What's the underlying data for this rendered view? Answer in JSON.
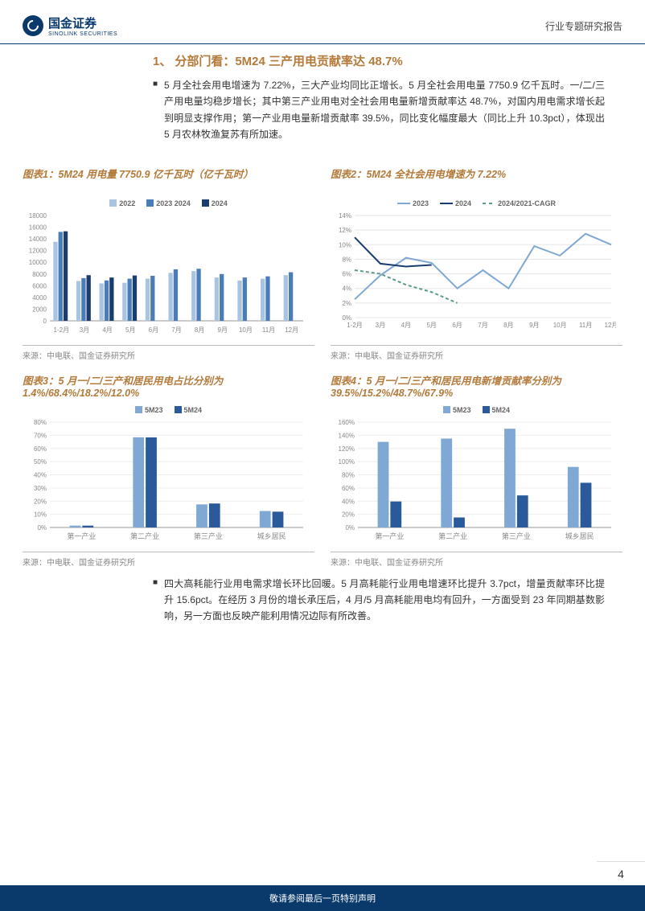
{
  "header": {
    "company_zh": "国金证券",
    "company_en": "SINOLINK SECURITIES",
    "report_type": "行业专题研究报告"
  },
  "section": {
    "number": "1、",
    "title": "分部门看：5M24 三产用电贡献率达 48.7%"
  },
  "para1": "5 月全社会用电增速为 7.22%，三大产业均同比正增长。5 月全社会用电量 7750.9 亿千瓦时。一/二/三产用电量均稳步增长；其中第三产业用电对全社会用电量新增贡献率达 48.7%，对国内用电需求增长起到明显支撑作用；第一产业用电量新增贡献率 39.5%，同比变化幅度最大（同比上升 10.3pct），体现出 5 月农林牧渔复苏有所加速。",
  "para2": "四大高耗能行业用电需求增长环比回暖。5 月高耗能行业用电增速环比提升 3.7pct，增量贡献率环比提升 15.6pct。在经历 3 月份的增长承压后，4 月/5 月高耗能用电均有回升，一方面受到 23 年同期基数影响，另一方面也反映产能利用情况边际有所改善。",
  "source_text": "来源：中电联、国金证券研究所",
  "footer": {
    "disclaimer": "敬请参阅最后一页特别声明",
    "page": "4"
  },
  "chart1": {
    "title": "图表1：5M24 用电量 7750.9 亿千瓦时（亿千瓦时）",
    "type": "bar",
    "legend": [
      "2022",
      "2023 2024",
      "2024"
    ],
    "colors": [
      "#a8c4e0",
      "#4a7cb8",
      "#1a3c6e"
    ],
    "categories": [
      "1-2月",
      "3月",
      "4月",
      "5月",
      "6月",
      "7月",
      "8月",
      "9月",
      "10月",
      "11月",
      "12月"
    ],
    "ylim": [
      0,
      18000
    ],
    "ytick_step": 2000,
    "values_2022": [
      13500,
      6800,
      6400,
      6500,
      7200,
      8200,
      8500,
      7400,
      6900,
      7200,
      7800
    ],
    "values_2023": [
      15200,
      7300,
      6900,
      7200,
      7700,
      8800,
      8900,
      8000,
      7400,
      7600,
      8300
    ],
    "values_2024": [
      15300,
      7800,
      7400,
      7750,
      0,
      0,
      0,
      0,
      0,
      0,
      0
    ],
    "background_color": "#ffffff",
    "axis_color": "#999999",
    "label_fontsize": 9
  },
  "chart2": {
    "title": "图表2：5M24 全社会用电增速为 7.22%",
    "type": "line",
    "legend": [
      "2023",
      "2024",
      "2024/2021-CAGR"
    ],
    "colors": [
      "#7fa8d4",
      "#1a3c6e",
      "#5a9a8a"
    ],
    "line_styles": [
      "solid",
      "solid",
      "dashed"
    ],
    "categories": [
      "1-2月",
      "3月",
      "4月",
      "5月",
      "6月",
      "7月",
      "8月",
      "9月",
      "10月",
      "11月",
      "12月"
    ],
    "ylim": [
      0,
      14
    ],
    "ytick_step": 2,
    "unit": "%",
    "values_2023": [
      2.5,
      5.8,
      8.2,
      7.5,
      4.0,
      6.5,
      4.0,
      9.8,
      8.5,
      11.5,
      10.0
    ],
    "values_2024": [
      11.0,
      7.4,
      7.0,
      7.22
    ],
    "values_cagr": [
      6.5,
      6.0,
      4.5,
      3.5,
      2.0
    ],
    "background_color": "#ffffff",
    "grid_color": "#e5e5e5",
    "label_fontsize": 9
  },
  "chart3": {
    "title": "图表3：5 月一/二/三产和居民用电占比分别为 1.4%/68.4%/18.2%/12.0%",
    "type": "bar",
    "legend": [
      "5M23",
      "5M24"
    ],
    "colors": [
      "#7fa8d4",
      "#2a5a9a"
    ],
    "categories": [
      "第一产业",
      "第二产业",
      "第三产业",
      "城乡居民"
    ],
    "ylim": [
      0,
      80
    ],
    "ytick_step": 10,
    "unit": "%",
    "values_5m23": [
      1.4,
      68.5,
      17.5,
      12.5
    ],
    "values_5m24": [
      1.4,
      68.4,
      18.2,
      12.0
    ],
    "bar_width": 0.35,
    "background_color": "#ffffff"
  },
  "chart4": {
    "title": "图表4：5 月一/二/三产和居民用电新增贡献率分别为 39.5%/15.2%/48.7%/67.9%",
    "type": "bar",
    "legend": [
      "5M23",
      "5M24"
    ],
    "colors": [
      "#7fa8d4",
      "#2a5a9a"
    ],
    "categories": [
      "第一产业",
      "第二产业",
      "第三产业",
      "城乡居民"
    ],
    "ylim": [
      0,
      160
    ],
    "ytick_step": 20,
    "unit": "%",
    "values_5m23": [
      130,
      135,
      150,
      92
    ],
    "values_5m24": [
      39.5,
      15.2,
      48.7,
      67.9
    ],
    "bar_width": 0.35,
    "background_color": "#ffffff"
  }
}
